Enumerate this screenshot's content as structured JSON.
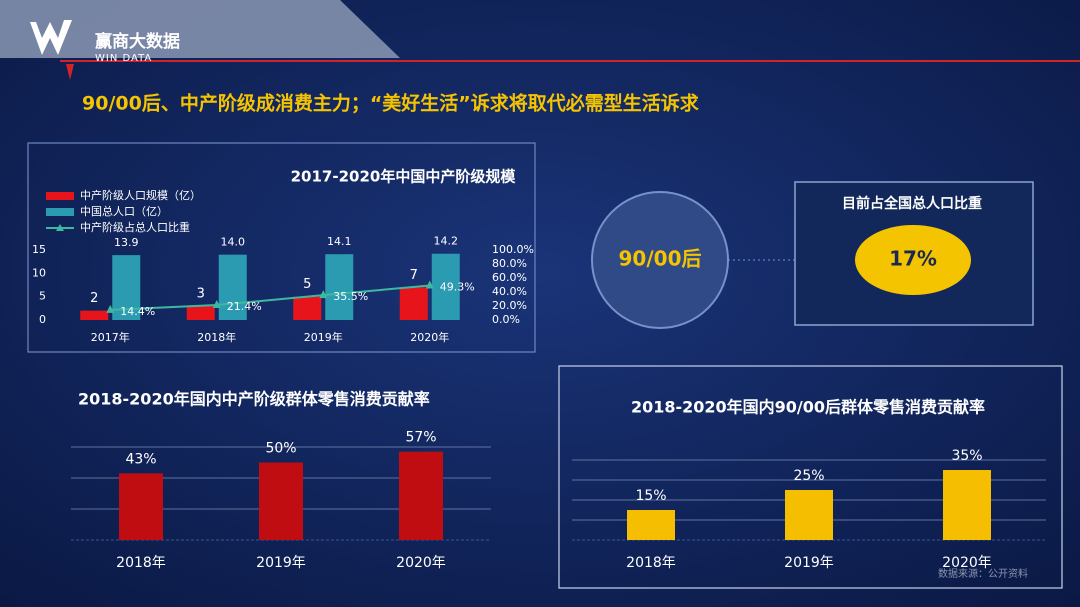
{
  "header": {
    "brand": "赢商大数据",
    "brand_en": "WIN DATA"
  },
  "headline": "90/00后、中产阶级成消费主力；“美好生活”诉求将取代必需型生活诉求",
  "callout": {
    "group": "90/00后",
    "box_title": "目前占全国总人口比重",
    "share": "17%"
  },
  "source": "数据来源：公开资料",
  "chart_data": [
    {
      "type": "bar",
      "title": "2017-2020年中国中产阶级规模",
      "categories": [
        "2017年",
        "2018年",
        "2019年",
        "2020年"
      ],
      "series": [
        {
          "name": "中产阶级人口规模（亿）",
          "color": "#e8141b",
          "values": [
            2,
            3,
            5,
            7
          ]
        },
        {
          "name": "中国总人口（亿）",
          "color": "#2a9bb0",
          "values": [
            13.9,
            14.0,
            14.1,
            14.2
          ],
          "value_labels": [
            "13.9",
            "14.0",
            "14.1",
            "14.2"
          ]
        },
        {
          "name": "中产阶级占总人口比重",
          "type": "line",
          "axis": "y2",
          "color": "#3fb8a0",
          "values": [
            14.4,
            21.4,
            35.5,
            49.3
          ],
          "value_labels": [
            "14.4%",
            "21.4%",
            "35.5%",
            "49.3%"
          ]
        }
      ],
      "ylim": [
        0,
        15
      ],
      "yticks": [
        0,
        5,
        10,
        15
      ],
      "y2lim": [
        0,
        100
      ],
      "y2ticks": [
        {
          "value": 0,
          "label": "0.0%"
        },
        {
          "value": 20,
          "label": "20.0%"
        },
        {
          "value": 40,
          "label": "40.0%"
        },
        {
          "value": 60,
          "label": "60.0%"
        },
        {
          "value": 80,
          "label": "80.0%"
        },
        {
          "value": 100,
          "label": "100.0%"
        }
      ],
      "grid": false,
      "legend": "top-left"
    },
    {
      "type": "bar",
      "title": "2018-2020年国内中产阶级群体零售消费贡献率",
      "categories": [
        "2018年",
        "2019年",
        "2020年"
      ],
      "values": [
        43,
        50,
        57
      ],
      "value_labels": [
        "43%",
        "50%",
        "57%"
      ],
      "color": "#c00d12",
      "ylim": [
        0,
        60
      ],
      "yticks": [
        0,
        20,
        40,
        60
      ],
      "tick_labels": false,
      "grid": true
    },
    {
      "type": "bar",
      "title": "2018-2020年国内90/00后群体零售消费贡献率",
      "categories": [
        "2018年",
        "2019年",
        "2020年"
      ],
      "values": [
        15,
        25,
        35
      ],
      "value_labels": [
        "15%",
        "25%",
        "35%"
      ],
      "color": "#f5be00",
      "ylim": [
        0,
        40
      ],
      "yticks": [
        0,
        10,
        20,
        30,
        40
      ],
      "tick_labels": false,
      "grid": true
    }
  ]
}
